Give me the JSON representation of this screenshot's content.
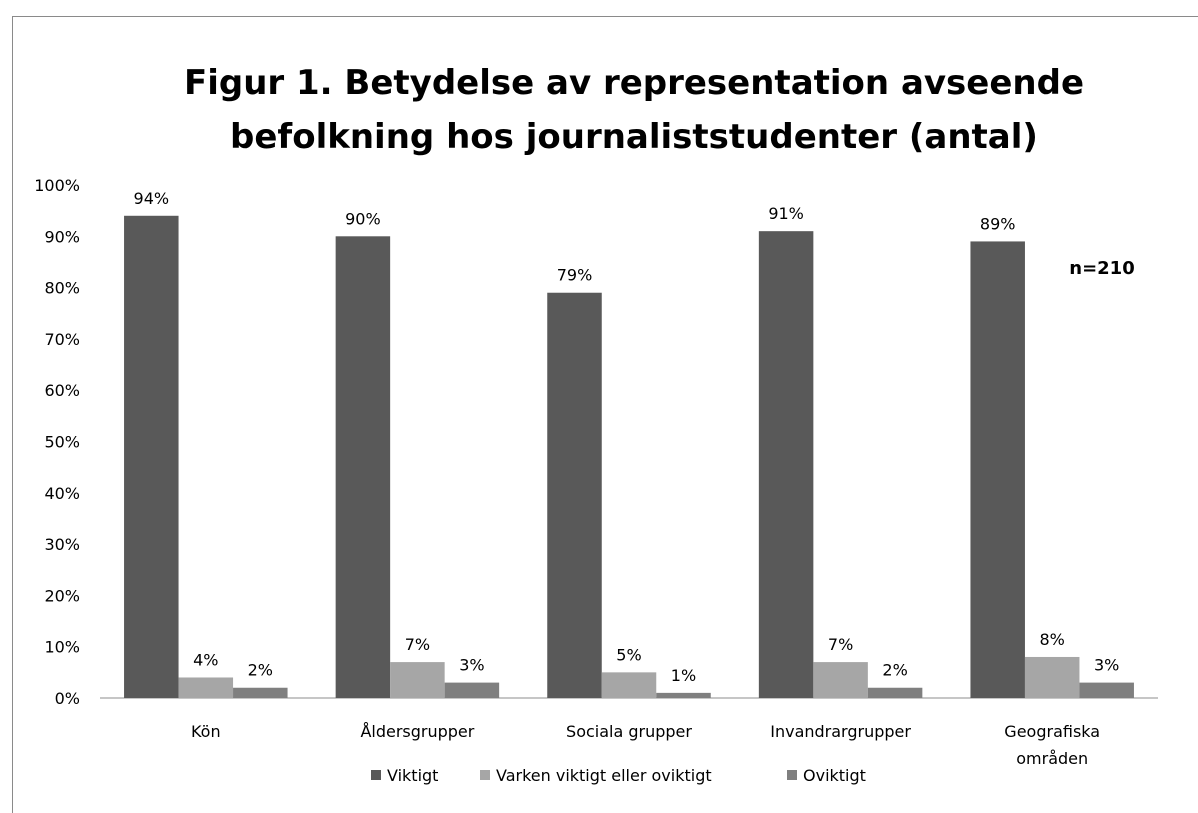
{
  "chart_data": {
    "type": "bar",
    "title": [
      "Figur 1. Betydelse av representation avseende",
      "befolkning hos journaliststudenter (antal)"
    ],
    "note": "n=210",
    "categories": [
      [
        "Kön"
      ],
      [
        "Åldersgrupper"
      ],
      [
        "Sociala grupper"
      ],
      [
        "Invandrargrupper"
      ],
      [
        "Geografiska",
        "områden"
      ]
    ],
    "series": [
      {
        "name": "Viktigt",
        "values": [
          94,
          90,
          79,
          91,
          89
        ],
        "color": "#595959"
      },
      {
        "name": "Varken viktigt eller oviktigt",
        "values": [
          4,
          7,
          5,
          7,
          8
        ],
        "color": "#a6a6a6"
      },
      {
        "name": "Oviktigt",
        "values": [
          2,
          3,
          1,
          2,
          3
        ],
        "color": "#7f7f7f"
      }
    ],
    "value_labels": [
      [
        "94%",
        "90%",
        "79%",
        "91%",
        "89%"
      ],
      [
        "4%",
        "7%",
        "5%",
        "7%",
        "8%"
      ],
      [
        "2%",
        "3%",
        "1%",
        "2%",
        "3%"
      ]
    ],
    "ylim": [
      0,
      100
    ],
    "yticks": [
      "0%",
      "10%",
      "20%",
      "30%",
      "40%",
      "50%",
      "60%",
      "70%",
      "80%",
      "90%",
      "100%"
    ],
    "grid": false,
    "legend_position": "bottom"
  }
}
